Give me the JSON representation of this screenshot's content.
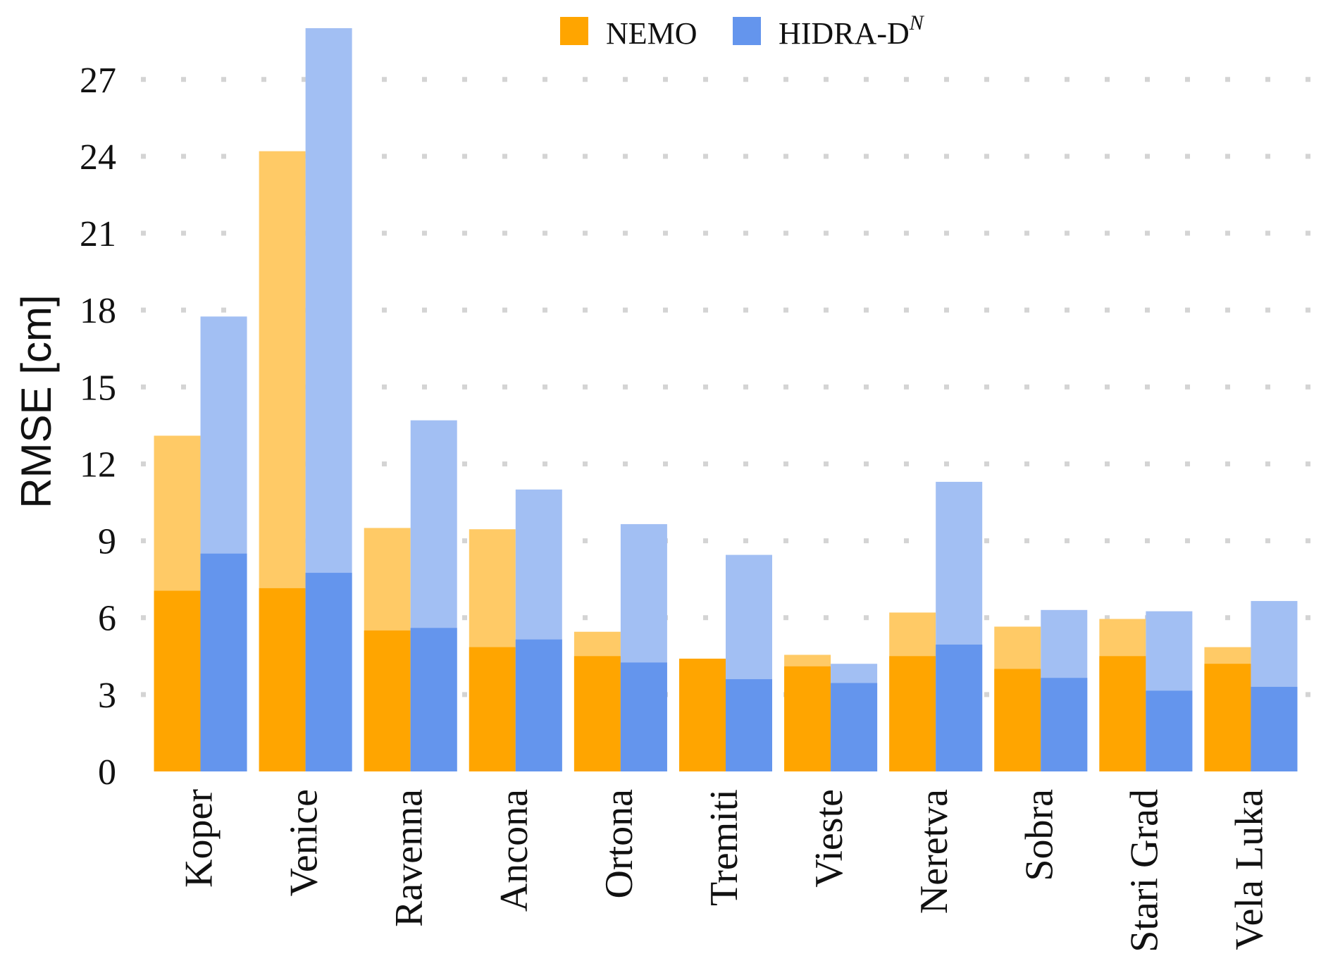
{
  "chart_data": {
    "type": "bar",
    "ylabel": "RMSE [cm]",
    "ylim": [
      0,
      29
    ],
    "yticks": [
      0,
      3,
      6,
      9,
      12,
      15,
      18,
      21,
      24,
      27
    ],
    "grid": "horizontal dotted",
    "legend_position": "top-center",
    "categories": [
      "Koper",
      "Venice",
      "Ravenna",
      "Ancona",
      "Ortona",
      "Tremiti",
      "Vieste",
      "Neretva",
      "Sobra",
      "Stari Grad",
      "Vela Luka"
    ],
    "series": [
      {
        "name": "NEMO",
        "legend_label": "NEMO",
        "color": "#FFA500",
        "light_color": "#FFCA66",
        "values": [
          13.1,
          24.2,
          9.5,
          9.45,
          5.45,
          4.4,
          4.55,
          6.2,
          5.65,
          5.95,
          4.85
        ],
        "dark_values": [
          7.05,
          7.15,
          5.5,
          4.85,
          4.5,
          4.4,
          4.1,
          4.5,
          4.0,
          4.5,
          4.2
        ]
      },
      {
        "name": "HIDRA-DN",
        "legend_label": "HIDRA-D",
        "legend_sup": "N",
        "color": "#6495ED",
        "light_color": "#A2BFF3",
        "values": [
          17.75,
          29.0,
          13.7,
          11.0,
          9.65,
          8.45,
          4.2,
          11.3,
          6.3,
          6.25,
          6.65
        ],
        "dark_values": [
          8.5,
          7.75,
          5.6,
          5.15,
          4.25,
          3.6,
          3.45,
          4.95,
          3.65,
          3.15,
          3.3
        ]
      }
    ]
  }
}
